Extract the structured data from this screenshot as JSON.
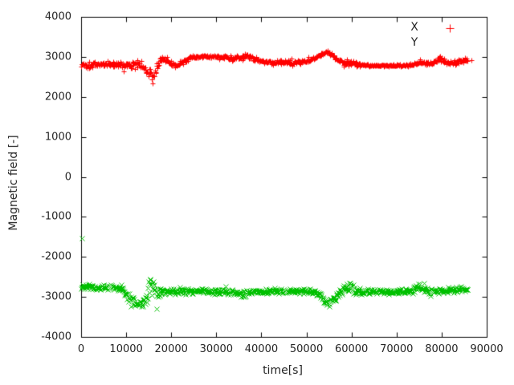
{
  "chart_data": {
    "type": "scatter",
    "title": "",
    "xlabel": "time[s]",
    "ylabel": "Magnetic field [-]",
    "xlim": [
      0,
      90000
    ],
    "ylim": [
      -4000,
      4000
    ],
    "xticks": [
      0,
      10000,
      20000,
      30000,
      40000,
      50000,
      60000,
      70000,
      80000,
      90000
    ],
    "yticks": [
      4000,
      3000,
      2000,
      1000,
      0,
      -1000,
      -2000,
      -3000,
      -4000
    ],
    "grid": false,
    "background": "#ffffff",
    "border_color": "#000000",
    "text_color": "#262626",
    "legend": {
      "position": "top-right-inside",
      "entries": [
        "X",
        "Y"
      ]
    },
    "noise_seed": 1337,
    "series": [
      {
        "name": "X",
        "color": "#ff0000",
        "marker": "plus",
        "legend_marker_visible": true,
        "sample_step": 110,
        "keypoints": [
          [
            0,
            2810,
            90
          ],
          [
            2000,
            2800,
            95
          ],
          [
            4000,
            2820,
            90
          ],
          [
            6000,
            2830,
            90
          ],
          [
            8000,
            2790,
            105
          ],
          [
            10000,
            2800,
            100
          ],
          [
            12000,
            2820,
            95
          ],
          [
            13500,
            2790,
            110
          ],
          [
            14800,
            2600,
            140
          ],
          [
            15600,
            2510,
            130
          ],
          [
            16300,
            2560,
            150
          ],
          [
            17200,
            2840,
            130
          ],
          [
            18000,
            2950,
            90
          ],
          [
            19000,
            2900,
            75
          ],
          [
            20000,
            2830,
            80
          ],
          [
            21500,
            2790,
            85
          ],
          [
            23000,
            2920,
            70
          ],
          [
            24500,
            2990,
            50
          ],
          [
            26000,
            3000,
            45
          ],
          [
            28000,
            3010,
            40
          ],
          [
            30000,
            3000,
            45
          ],
          [
            32000,
            2990,
            55
          ],
          [
            33500,
            2970,
            70
          ],
          [
            35000,
            3000,
            80
          ],
          [
            36500,
            3060,
            85
          ],
          [
            37500,
            3000,
            85
          ],
          [
            38500,
            2950,
            70
          ],
          [
            40000,
            2900,
            65
          ],
          [
            42000,
            2860,
            70
          ],
          [
            44000,
            2850,
            75
          ],
          [
            46000,
            2880,
            65
          ],
          [
            48000,
            2870,
            60
          ],
          [
            50000,
            2900,
            55
          ],
          [
            52000,
            2990,
            55
          ],
          [
            53500,
            3090,
            60
          ],
          [
            54700,
            3130,
            60
          ],
          [
            55700,
            3060,
            65
          ],
          [
            57000,
            2920,
            80
          ],
          [
            58300,
            2840,
            95
          ],
          [
            59500,
            2860,
            95
          ],
          [
            60800,
            2820,
            80
          ],
          [
            62000,
            2800,
            50
          ],
          [
            64000,
            2790,
            30
          ],
          [
            67000,
            2790,
            28
          ],
          [
            70000,
            2790,
            28
          ],
          [
            72500,
            2795,
            35
          ],
          [
            74000,
            2830,
            65
          ],
          [
            75500,
            2890,
            85
          ],
          [
            76800,
            2830,
            75
          ],
          [
            78000,
            2850,
            75
          ],
          [
            79500,
            2940,
            95
          ],
          [
            80800,
            2880,
            85
          ],
          [
            82000,
            2850,
            75
          ],
          [
            83500,
            2880,
            65
          ],
          [
            84800,
            2910,
            55
          ],
          [
            85800,
            2920,
            45
          ]
        ],
        "outliers": [
          [
            86700,
            2920
          ]
        ]
      },
      {
        "name": "Y",
        "color": "#00c000",
        "marker": "cross",
        "legend_marker_visible": false,
        "sample_step": 110,
        "keypoints": [
          [
            0,
            -2740,
            80
          ],
          [
            2000,
            -2750,
            80
          ],
          [
            4000,
            -2740,
            85
          ],
          [
            6000,
            -2750,
            80
          ],
          [
            8000,
            -2770,
            90
          ],
          [
            9000,
            -2800,
            100
          ],
          [
            10000,
            -2950,
            120
          ],
          [
            11000,
            -3060,
            120
          ],
          [
            12000,
            -3130,
            120
          ],
          [
            13000,
            -3160,
            120
          ],
          [
            13800,
            -3120,
            140
          ],
          [
            14500,
            -3040,
            200
          ],
          [
            15200,
            -2720,
            340
          ],
          [
            16000,
            -2700,
            350
          ],
          [
            16700,
            -2900,
            260
          ],
          [
            17400,
            -2880,
            120
          ],
          [
            18500,
            -2870,
            90
          ],
          [
            20000,
            -2860,
            85
          ],
          [
            23000,
            -2860,
            80
          ],
          [
            26000,
            -2850,
            75
          ],
          [
            29000,
            -2860,
            80
          ],
          [
            32000,
            -2870,
            85
          ],
          [
            34500,
            -2890,
            100
          ],
          [
            36000,
            -2910,
            110
          ],
          [
            37500,
            -2870,
            90
          ],
          [
            40000,
            -2860,
            80
          ],
          [
            43000,
            -2850,
            80
          ],
          [
            46000,
            -2860,
            75
          ],
          [
            49000,
            -2850,
            75
          ],
          [
            51500,
            -2860,
            80
          ],
          [
            53000,
            -2950,
            90
          ],
          [
            54200,
            -3100,
            90
          ],
          [
            55000,
            -3140,
            85
          ],
          [
            56000,
            -3080,
            90
          ],
          [
            57200,
            -2900,
            130
          ],
          [
            58500,
            -2790,
            170
          ],
          [
            59800,
            -2750,
            190
          ],
          [
            61000,
            -2840,
            150
          ],
          [
            62500,
            -2870,
            90
          ],
          [
            65000,
            -2860,
            70
          ],
          [
            68000,
            -2870,
            70
          ],
          [
            71000,
            -2860,
            75
          ],
          [
            73500,
            -2840,
            90
          ],
          [
            74800,
            -2740,
            170
          ],
          [
            75800,
            -2760,
            190
          ],
          [
            77000,
            -2830,
            120
          ],
          [
            78500,
            -2850,
            90
          ],
          [
            80000,
            -2840,
            90
          ],
          [
            82000,
            -2830,
            85
          ],
          [
            84000,
            -2810,
            75
          ],
          [
            85800,
            -2820,
            60
          ]
        ],
        "outliers": [
          [
            150,
            -1530
          ]
        ]
      }
    ]
  }
}
